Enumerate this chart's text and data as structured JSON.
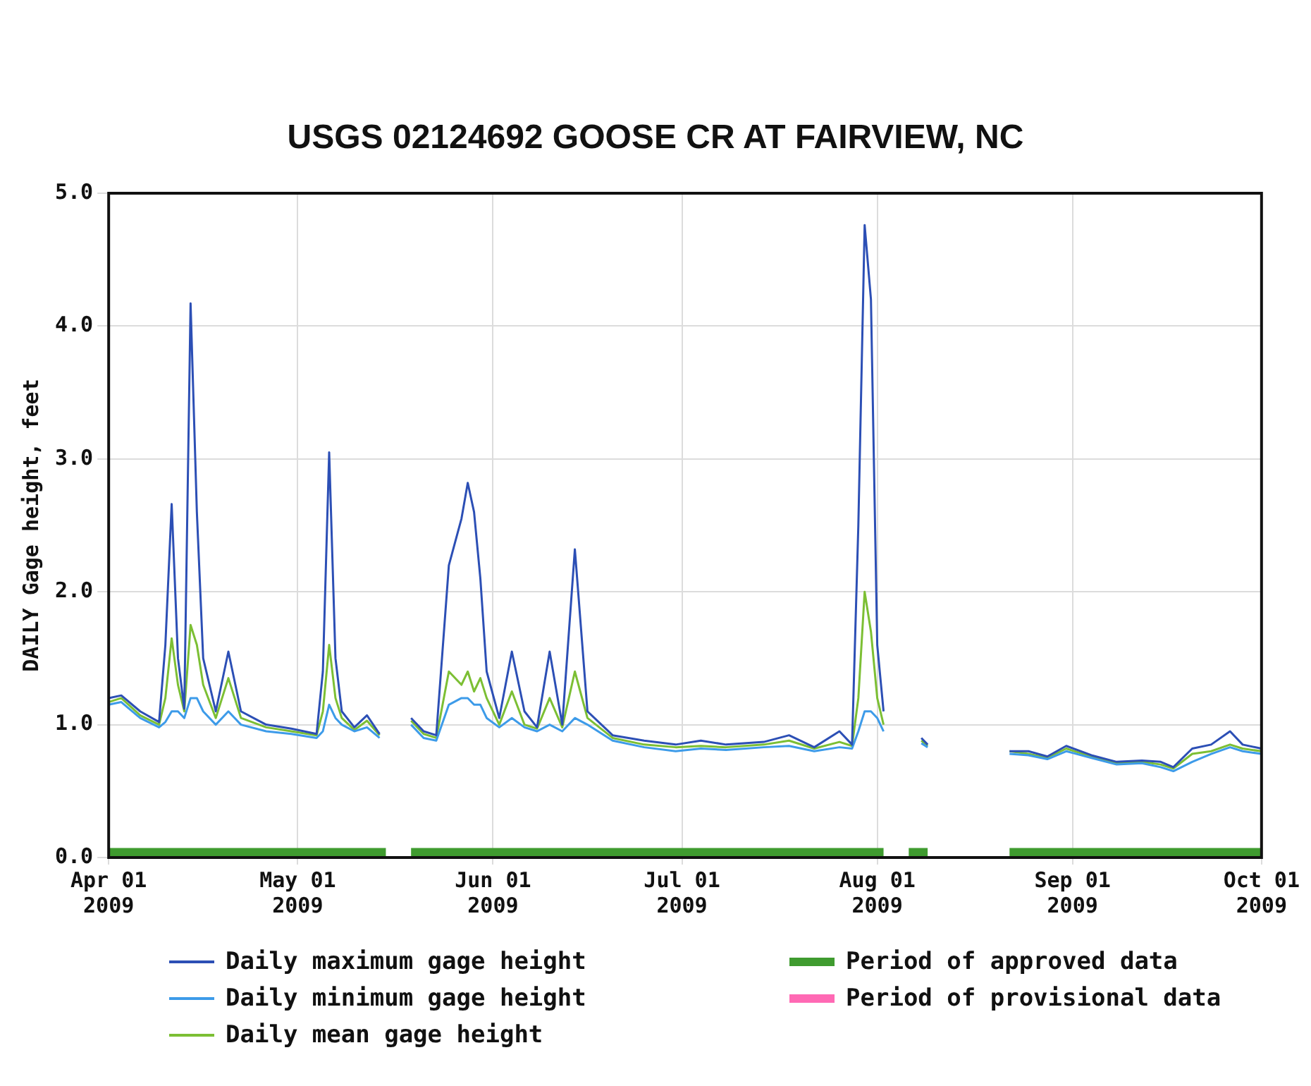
{
  "chart_data": {
    "type": "line",
    "title": "USGS 02124692 GOOSE CR AT FAIRVIEW, NC",
    "ylabel": "DAILY Gage height, feet",
    "x": [
      "2009-04-01",
      "2009-04-03",
      "2009-04-06",
      "2009-04-09",
      "2009-04-10",
      "2009-04-11",
      "2009-04-12",
      "2009-04-13",
      "2009-04-14",
      "2009-04-15",
      "2009-04-16",
      "2009-04-18",
      "2009-04-20",
      "2009-04-22",
      "2009-04-26",
      "2009-04-30",
      "2009-05-04",
      "2009-05-05",
      "2009-05-06",
      "2009-05-07",
      "2009-05-08",
      "2009-05-10",
      "2009-05-12",
      "2009-05-14",
      "2009-05-16",
      "2009-05-19",
      "2009-05-21",
      "2009-05-23",
      "2009-05-25",
      "2009-05-27",
      "2009-05-28",
      "2009-05-29",
      "2009-05-30",
      "2009-05-31",
      "2009-06-02",
      "2009-06-04",
      "2009-06-06",
      "2009-06-08",
      "2009-06-10",
      "2009-06-12",
      "2009-06-14",
      "2009-06-16",
      "2009-06-20",
      "2009-06-25",
      "2009-06-30",
      "2009-07-04",
      "2009-07-08",
      "2009-07-14",
      "2009-07-18",
      "2009-07-22",
      "2009-07-26",
      "2009-07-28",
      "2009-07-29",
      "2009-07-30",
      "2009-07-31",
      "2009-08-01",
      "2009-08-02",
      "2009-08-05",
      "2009-08-08",
      "2009-08-09",
      "2009-08-15",
      "2009-08-22",
      "2009-08-25",
      "2009-08-28",
      "2009-08-31",
      "2009-09-04",
      "2009-09-08",
      "2009-09-12",
      "2009-09-15",
      "2009-09-17",
      "2009-09-20",
      "2009-09-23",
      "2009-09-26",
      "2009-09-28",
      "2009-10-01"
    ],
    "series": [
      {
        "name": "Daily maximum gage height",
        "color": "#2c4fb5",
        "values": [
          1.2,
          1.22,
          1.1,
          1.02,
          1.6,
          2.66,
          1.5,
          1.12,
          4.17,
          2.6,
          1.5,
          1.1,
          1.55,
          1.1,
          1.0,
          0.97,
          0.93,
          1.4,
          3.05,
          1.5,
          1.1,
          0.98,
          1.07,
          0.93,
          null,
          1.05,
          0.95,
          0.92,
          2.2,
          2.55,
          2.82,
          2.6,
          2.1,
          1.4,
          1.05,
          1.55,
          1.1,
          0.98,
          1.55,
          1.0,
          2.32,
          1.1,
          0.92,
          0.88,
          0.85,
          0.88,
          0.85,
          0.87,
          0.92,
          0.83,
          0.95,
          0.85,
          2.5,
          4.76,
          4.2,
          1.6,
          1.1,
          null,
          0.9,
          0.85,
          null,
          0.8,
          0.8,
          0.76,
          0.84,
          0.77,
          0.72,
          0.73,
          0.72,
          0.68,
          0.82,
          0.85,
          0.95,
          0.85,
          0.82
        ]
      },
      {
        "name": "Daily minimum gage height",
        "color": "#3d9be9",
        "values": [
          1.15,
          1.17,
          1.05,
          0.98,
          1.02,
          1.1,
          1.1,
          1.05,
          1.2,
          1.2,
          1.1,
          1.0,
          1.1,
          1.0,
          0.95,
          0.93,
          0.9,
          0.95,
          1.15,
          1.05,
          1.0,
          0.95,
          0.98,
          0.9,
          null,
          1.0,
          0.9,
          0.88,
          1.15,
          1.2,
          1.2,
          1.15,
          1.15,
          1.05,
          0.98,
          1.05,
          0.98,
          0.95,
          1.0,
          0.95,
          1.05,
          1.0,
          0.88,
          0.83,
          0.8,
          0.82,
          0.81,
          0.83,
          0.84,
          0.8,
          0.83,
          0.82,
          0.95,
          1.1,
          1.1,
          1.05,
          0.95,
          null,
          0.86,
          0.83,
          null,
          0.78,
          0.77,
          0.74,
          0.8,
          0.75,
          0.7,
          0.71,
          0.68,
          0.65,
          0.72,
          0.78,
          0.83,
          0.8,
          0.78
        ]
      },
      {
        "name": "Daily mean gage height",
        "color": "#7cbf34",
        "values": [
          1.17,
          1.2,
          1.07,
          1.0,
          1.2,
          1.65,
          1.3,
          1.1,
          1.75,
          1.6,
          1.3,
          1.05,
          1.35,
          1.05,
          0.98,
          0.95,
          0.92,
          1.1,
          1.6,
          1.2,
          1.05,
          0.96,
          1.03,
          0.92,
          null,
          1.03,
          0.93,
          0.9,
          1.4,
          1.3,
          1.4,
          1.25,
          1.35,
          1.2,
          1.0,
          1.25,
          1.0,
          0.97,
          1.2,
          0.98,
          1.4,
          1.05,
          0.9,
          0.85,
          0.83,
          0.84,
          0.83,
          0.85,
          0.88,
          0.82,
          0.87,
          0.84,
          1.2,
          2.0,
          1.7,
          1.2,
          1.0,
          null,
          0.88,
          0.84,
          null,
          0.8,
          0.78,
          0.75,
          0.82,
          0.76,
          0.71,
          0.72,
          0.7,
          0.67,
          0.78,
          0.8,
          0.85,
          0.82,
          0.8
        ]
      },
      {
        "name": "Period of approved data",
        "color": "#3f9b2f",
        "x": [
          "2009-04-01",
          "2009-05-15",
          "2009-05-17",
          "2009-05-19",
          "2009-08-02",
          "2009-08-04",
          "2009-08-06",
          "2009-08-09",
          "2009-08-15",
          "2009-08-22",
          "2009-10-01"
        ],
        "values": [
          0.04,
          0.04,
          null,
          0.04,
          0.04,
          null,
          0.04,
          0.04,
          null,
          0.04,
          0.04
        ]
      },
      {
        "name": "Period of provisional data",
        "color": "#ff69b4",
        "values": [
          null,
          null,
          null,
          null,
          null,
          null,
          null,
          null,
          null,
          null,
          null,
          null,
          null,
          null,
          null,
          null,
          null,
          null,
          null,
          null,
          null,
          null,
          null,
          null,
          null,
          null,
          null,
          null,
          null,
          null,
          null,
          null,
          null,
          null,
          null,
          null,
          null,
          null,
          null,
          null,
          null,
          null,
          null,
          null,
          null,
          null,
          null,
          null,
          null,
          null,
          null,
          null,
          null,
          null,
          null,
          null,
          null,
          null,
          null,
          null,
          null,
          null,
          null,
          null,
          null,
          null,
          null,
          null,
          null,
          null,
          null,
          null,
          null,
          null,
          null
        ]
      }
    ],
    "xlim": [
      "2009-04-01",
      "2009-10-01"
    ],
    "xticks": [
      {
        "value": "2009-04-01",
        "label": "Apr 01 2009"
      },
      {
        "value": "2009-05-01",
        "label": "May 01 2009"
      },
      {
        "value": "2009-06-01",
        "label": "Jun 01 2009"
      },
      {
        "value": "2009-07-01",
        "label": "Jul 01 2009"
      },
      {
        "value": "2009-08-01",
        "label": "Aug 01 2009"
      },
      {
        "value": "2009-09-01",
        "label": "Sep 01 2009"
      },
      {
        "value": "2009-10-01",
        "label": "Oct 01 2009"
      }
    ],
    "ylim": [
      0,
      5
    ],
    "yticks": [
      {
        "value": 0,
        "label": "0.0"
      },
      {
        "value": 1,
        "label": "1.0"
      },
      {
        "value": 2,
        "label": "2.0"
      },
      {
        "value": 3,
        "label": "3.0"
      },
      {
        "value": 4,
        "label": "4.0"
      },
      {
        "value": 5,
        "label": "5.0"
      }
    ],
    "grid": true,
    "legend": "bottom",
    "marker": "none",
    "line_style": "solid"
  }
}
